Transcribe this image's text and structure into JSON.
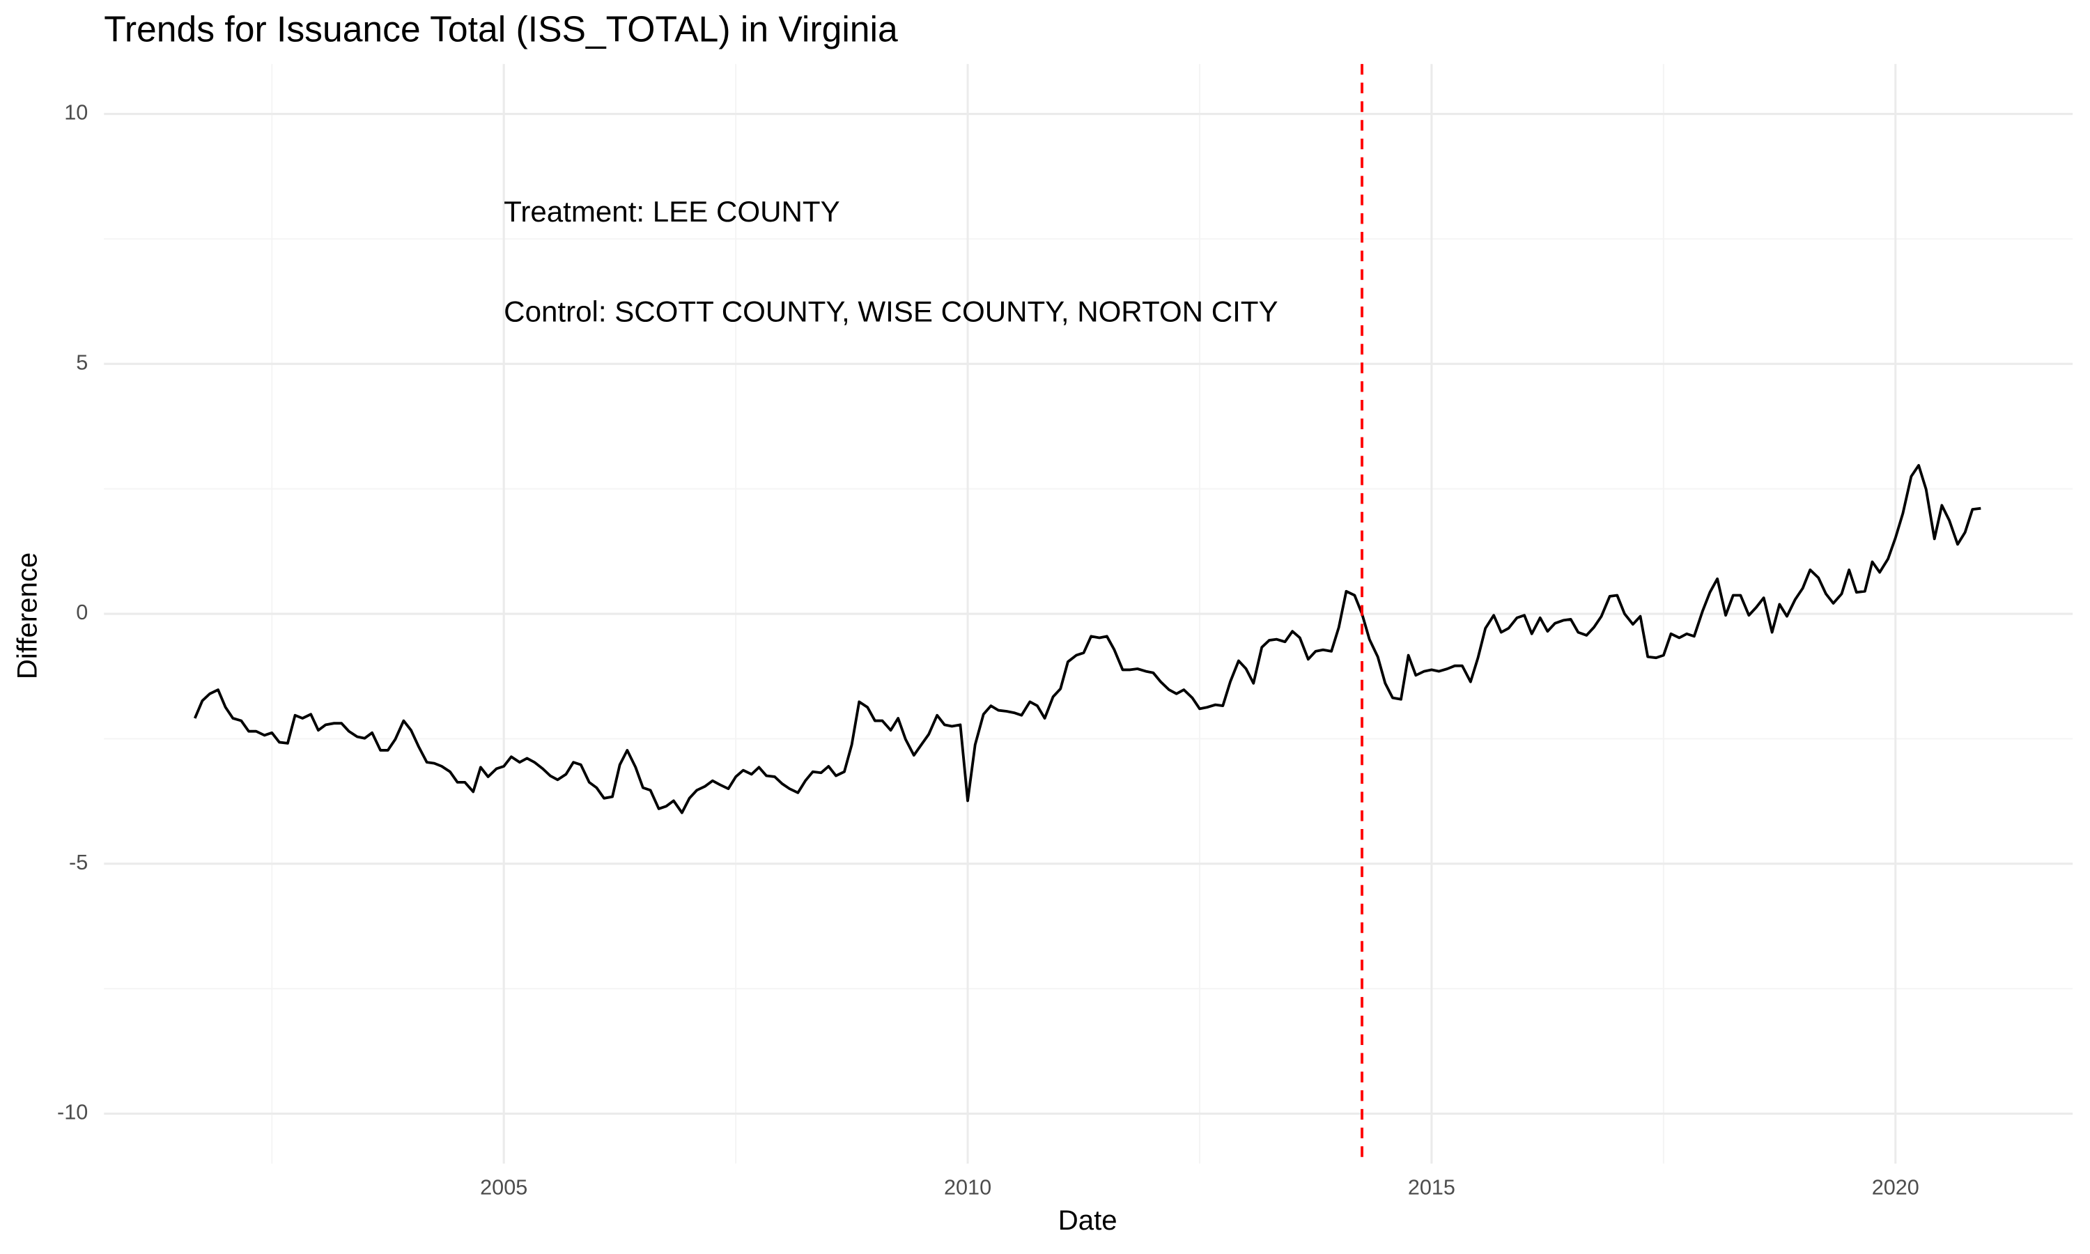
{
  "chart_data": {
    "type": "line",
    "title": "Trends for Issuance Total (ISS_TOTAL) in Virginia",
    "x_label": "Date",
    "y_label": "Difference",
    "x": [
      2001.67,
      2001.75,
      2001.83,
      2001.92,
      2002.0,
      2002.08,
      2002.17,
      2002.25,
      2002.33,
      2002.42,
      2002.5,
      2002.58,
      2002.67,
      2002.75,
      2002.83,
      2002.92,
      2003.0,
      2003.08,
      2003.17,
      2003.25,
      2003.33,
      2003.42,
      2003.5,
      2003.58,
      2003.67,
      2003.75,
      2003.83,
      2003.92,
      2004.0,
      2004.08,
      2004.17,
      2004.25,
      2004.33,
      2004.42,
      2004.5,
      2004.58,
      2004.67,
      2004.75,
      2004.83,
      2004.92,
      2005.0,
      2005.08,
      2005.17,
      2005.25,
      2005.33,
      2005.42,
      2005.5,
      2005.58,
      2005.67,
      2005.75,
      2005.83,
      2005.92,
      2006.0,
      2006.08,
      2006.17,
      2006.25,
      2006.33,
      2006.42,
      2006.5,
      2006.58,
      2006.67,
      2006.75,
      2006.83,
      2006.92,
      2007.0,
      2007.08,
      2007.17,
      2007.25,
      2007.33,
      2007.42,
      2007.5,
      2007.58,
      2007.67,
      2007.75,
      2007.83,
      2007.92,
      2008.0,
      2008.08,
      2008.17,
      2008.25,
      2008.33,
      2008.42,
      2008.5,
      2008.58,
      2008.67,
      2008.75,
      2008.83,
      2008.92,
      2009.0,
      2009.08,
      2009.17,
      2009.25,
      2009.33,
      2009.42,
      2009.5,
      2009.58,
      2009.67,
      2009.75,
      2009.83,
      2009.92,
      2010.0,
      2010.08,
      2010.17,
      2010.25,
      2010.33,
      2010.42,
      2010.5,
      2010.58,
      2010.67,
      2010.75,
      2010.83,
      2010.92,
      2011.0,
      2011.08,
      2011.17,
      2011.25,
      2011.33,
      2011.42,
      2011.5,
      2011.58,
      2011.67,
      2011.75,
      2011.83,
      2011.92,
      2012.0,
      2012.08,
      2012.17,
      2012.25,
      2012.33,
      2012.42,
      2012.5,
      2012.58,
      2012.67,
      2012.75,
      2012.83,
      2012.92,
      2013.0,
      2013.08,
      2013.17,
      2013.25,
      2013.33,
      2013.42,
      2013.5,
      2013.58,
      2013.67,
      2013.75,
      2013.83,
      2013.92,
      2014.0,
      2014.08,
      2014.17,
      2014.25,
      2014.33,
      2014.42,
      2014.5,
      2014.58,
      2014.67,
      2014.75,
      2014.83,
      2014.92,
      2015.0,
      2015.08,
      2015.17,
      2015.25,
      2015.33,
      2015.42,
      2015.5,
      2015.58,
      2015.67,
      2015.75,
      2015.83,
      2015.92,
      2016.0,
      2016.08,
      2016.17,
      2016.25,
      2016.33,
      2016.42,
      2016.5,
      2016.58,
      2016.67,
      2016.75,
      2016.83,
      2016.92,
      2017.0,
      2017.08,
      2017.17,
      2017.25,
      2017.33,
      2017.42,
      2017.5,
      2017.58,
      2017.67,
      2017.75,
      2017.83,
      2017.92,
      2018.0,
      2018.08,
      2018.17,
      2018.25,
      2018.33,
      2018.42,
      2018.5,
      2018.58,
      2018.67,
      2018.75,
      2018.83,
      2018.92,
      2019.0,
      2019.08,
      2019.17,
      2019.25,
      2019.33,
      2019.42,
      2019.5,
      2019.58,
      2019.67,
      2019.75,
      2019.83,
      2019.92,
      2020.0,
      2020.08,
      2020.17,
      2020.25,
      2020.33,
      2020.42,
      2020.5,
      2020.58,
      2020.67,
      2020.75,
      2020.83,
      2020.92
    ],
    "series": [
      {
        "color": "#000000",
        "values": [
          -2.09,
          -1.74,
          -1.6,
          -1.52,
          -1.87,
          -2.09,
          -2.14,
          -2.35,
          -2.35,
          -2.43,
          -2.38,
          -2.57,
          -2.59,
          -2.03,
          -2.09,
          -2.01,
          -2.33,
          -2.22,
          -2.19,
          -2.19,
          -2.35,
          -2.46,
          -2.49,
          -2.38,
          -2.73,
          -2.73,
          -2.51,
          -2.14,
          -2.33,
          -2.65,
          -2.97,
          -2.99,
          -3.05,
          -3.16,
          -3.37,
          -3.37,
          -3.56,
          -3.07,
          -3.26,
          -3.1,
          -3.05,
          -2.86,
          -2.97,
          -2.89,
          -2.97,
          -3.1,
          -3.24,
          -3.32,
          -3.21,
          -2.97,
          -3.02,
          -3.37,
          -3.48,
          -3.69,
          -3.66,
          -3.02,
          -2.73,
          -3.07,
          -3.48,
          -3.53,
          -3.9,
          -3.85,
          -3.74,
          -3.98,
          -3.69,
          -3.53,
          -3.45,
          -3.34,
          -3.42,
          -3.5,
          -3.26,
          -3.13,
          -3.21,
          -3.07,
          -3.24,
          -3.26,
          -3.4,
          -3.5,
          -3.58,
          -3.34,
          -3.16,
          -3.18,
          -3.05,
          -3.24,
          -3.16,
          -2.62,
          -1.76,
          -1.87,
          -2.14,
          -2.14,
          -2.33,
          -2.09,
          -2.51,
          -2.83,
          -2.62,
          -2.41,
          -2.03,
          -2.22,
          -2.25,
          -2.22,
          -3.74,
          -2.62,
          -2.01,
          -1.84,
          -1.93,
          -1.95,
          -1.98,
          -2.03,
          -1.76,
          -1.84,
          -2.09,
          -1.66,
          -1.5,
          -0.96,
          -0.83,
          -0.78,
          -0.45,
          -0.48,
          -0.45,
          -0.72,
          -1.12,
          -1.12,
          -1.1,
          -1.15,
          -1.18,
          -1.36,
          -1.52,
          -1.6,
          -1.52,
          -1.68,
          -1.9,
          -1.87,
          -1.82,
          -1.84,
          -1.36,
          -0.94,
          -1.1,
          -1.39,
          -0.67,
          -0.53,
          -0.51,
          -0.56,
          -0.35,
          -0.48,
          -0.91,
          -0.75,
          -0.72,
          -0.75,
          -0.27,
          0.45,
          0.37,
          0.0,
          -0.51,
          -0.86,
          -1.39,
          -1.68,
          -1.71,
          -0.83,
          -1.23,
          -1.15,
          -1.12,
          -1.15,
          -1.1,
          -1.04,
          -1.04,
          -1.36,
          -0.88,
          -0.29,
          -0.03,
          -0.37,
          -0.29,
          -0.08,
          -0.03,
          -0.4,
          -0.08,
          -0.35,
          -0.19,
          -0.13,
          -0.11,
          -0.37,
          -0.43,
          -0.27,
          -0.05,
          0.35,
          0.37,
          0.0,
          -0.21,
          -0.05,
          -0.86,
          -0.88,
          -0.83,
          -0.4,
          -0.48,
          -0.4,
          -0.45,
          0.05,
          0.43,
          0.7,
          -0.03,
          0.37,
          0.37,
          -0.03,
          0.13,
          0.32,
          -0.37,
          0.19,
          -0.05,
          0.29,
          0.51,
          0.88,
          0.72,
          0.4,
          0.21,
          0.4,
          0.88,
          0.43,
          0.45,
          1.04,
          0.83,
          1.1,
          1.52,
          2.01,
          2.75,
          2.97,
          2.49,
          1.5,
          2.17,
          1.87,
          1.39,
          1.63,
          2.09,
          2.11
        ]
      }
    ],
    "xlim": [
      2000.69,
      2021.91
    ],
    "xticks": [
      2005,
      2010,
      2015,
      2020
    ],
    "ylim": [
      -11,
      11
    ],
    "yticks": [
      -10,
      -5,
      0,
      5,
      10
    ],
    "grid": true,
    "vline": {
      "x": 2014.25,
      "color": "#ff0000",
      "dashed": true
    },
    "annotations": [
      {
        "text": "Treatment: LEE COUNTY",
        "x": 2005,
        "y": 8
      },
      {
        "text": "Control: SCOTT COUNTY, WISE COUNTY, NORTON CITY",
        "x": 2005,
        "y": 6
      }
    ]
  }
}
